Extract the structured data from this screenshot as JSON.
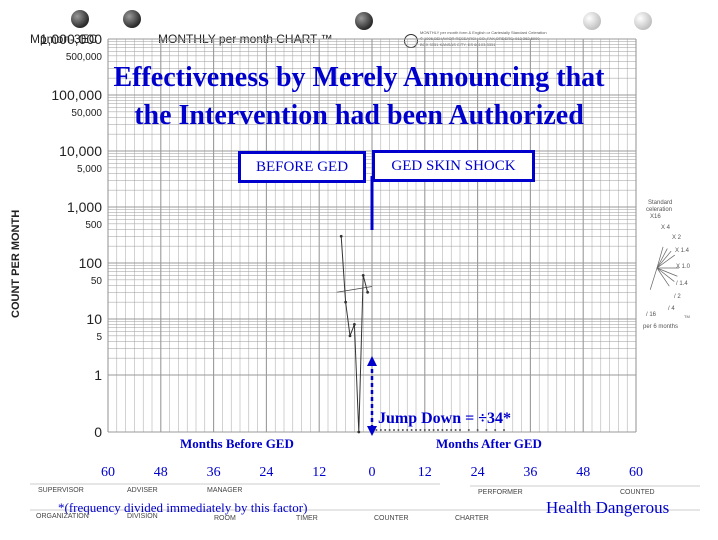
{
  "header": {
    "chart_id": "Mpmon-3EC",
    "chart_name": "MONTHLY per month CHART ™",
    "publisher_lines": [
      "MONTHLY per month form & English or Cartesially   Standard Celeration",
      "© 1996 BEHAVIOR RESEARCH CO. FAX ORDERS: 913 362 5900",
      "BOX 3351  KANSAS CITY, KS  66103-3351"
    ]
  },
  "title_lines": [
    "Effectiveness by Merely Announcing that",
    "the Intervention had been Authorized"
  ],
  "phases": {
    "before": "BEFORE GED",
    "after": "GED SKIN SHOCK"
  },
  "annotations": {
    "jump": "Jump Down = ÷34*",
    "months_before": "Months Before GED",
    "months_after": "Months After GED",
    "footnote": "*(frequency divided immediately by this factor)",
    "health": "Health Dangerous"
  },
  "y_axis_label": "COUNT PER MONTH",
  "celeration_fan": {
    "title": [
      "Standard",
      "celeration"
    ],
    "labels": [
      "X16",
      "X 4",
      "X 2",
      "X 1.4",
      "X 1.0",
      "/ 1.4",
      "/ 2",
      "/ 4",
      "/ 16",
      "per 6 months",
      "TM"
    ]
  },
  "footer_labels": {
    "supervisor": "SUPERVISOR",
    "adviser": "ADVISER",
    "manager": "MANAGER",
    "performer": "PERFORMER",
    "counted": "COUNTED",
    "organization": "ORGANIZATION",
    "division": "DIVISION",
    "room": "ROOM",
    "timer": "TIMER",
    "counter": "COUNTER",
    "charter": "CHARTER"
  },
  "colors": {
    "accent": "#0000cc",
    "grid": "#9a9a9a",
    "ink": "#222222"
  },
  "chart_data": {
    "type": "line",
    "title": "Effectiveness by Merely Announcing that the Intervention had been Authorized",
    "xlabel": "",
    "ylabel": "COUNT PER MONTH",
    "y_scale": "log",
    "ylim": [
      0,
      1000000
    ],
    "xlim": [
      -60,
      60
    ],
    "y_tick_labels": [
      "1,000,000",
      "500,000",
      "100,000",
      "50,000",
      "10,000",
      "5,000",
      "1,000",
      "500",
      "100",
      "50",
      "10",
      "5",
      "1",
      "0"
    ],
    "y_tick_values": [
      1000000,
      500000,
      100000,
      50000,
      10000,
      5000,
      1000,
      500,
      100,
      50,
      10,
      5,
      1,
      0
    ],
    "x_tick_labels": [
      "60",
      "48",
      "36",
      "24",
      "12",
      "0",
      "12",
      "24",
      "36",
      "48",
      "60"
    ],
    "x_tick_values": [
      -60,
      -48,
      -36,
      -24,
      -12,
      0,
      12,
      24,
      36,
      48,
      60
    ],
    "phase_change_at": 0,
    "before_series": {
      "x": [
        -7,
        -6,
        -5,
        -4,
        -3,
        -2,
        -1
      ],
      "y": [
        300,
        20,
        5,
        8,
        0,
        60,
        30
      ]
    },
    "before_trend": {
      "x": [
        -8,
        0
      ],
      "y": [
        30,
        38
      ]
    },
    "after_series": {
      "x": [
        1,
        2,
        3,
        4,
        5,
        6,
        7,
        8,
        9,
        10,
        11,
        12,
        13,
        14,
        15,
        16,
        17,
        18,
        19,
        20,
        22,
        24,
        26,
        28,
        30
      ],
      "y": [
        0,
        0,
        0,
        0,
        0,
        0,
        0,
        0,
        0,
        0,
        0,
        0,
        0,
        0,
        0,
        0,
        0,
        0,
        0,
        0,
        0,
        0,
        0,
        0,
        0
      ]
    }
  }
}
